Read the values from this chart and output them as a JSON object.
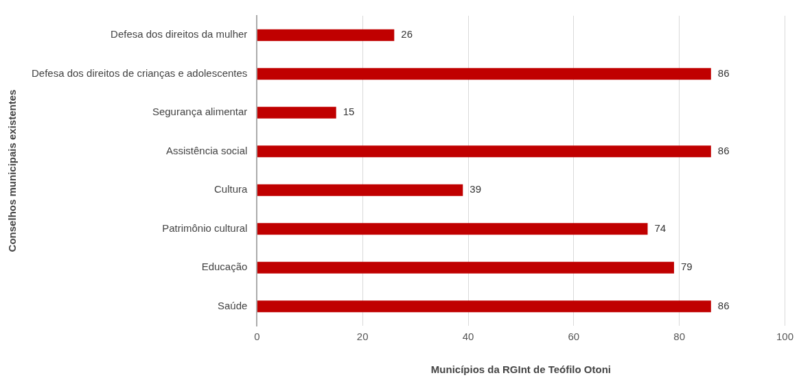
{
  "chart_data": {
    "type": "bar",
    "orientation": "horizontal",
    "xlabel": "Municípios da RGInt de Teófilo Otoni",
    "ylabel": "Conselhos municipais existentes",
    "categories": [
      "Defesa dos direitos da mulher",
      "Defesa dos direitos de crianças e adolescentes",
      "Segurança alimentar",
      "Assistência social",
      "Cultura",
      "Patrimônio cultural",
      "Educação",
      "Saúde"
    ],
    "values": [
      26,
      86,
      15,
      86,
      39,
      74,
      79,
      86
    ],
    "color": "#c00000",
    "xlim": [
      0,
      100
    ],
    "xticks": [
      0,
      20,
      40,
      60,
      80,
      100
    ],
    "grid": "x",
    "data_labels": true,
    "legend": false
  }
}
